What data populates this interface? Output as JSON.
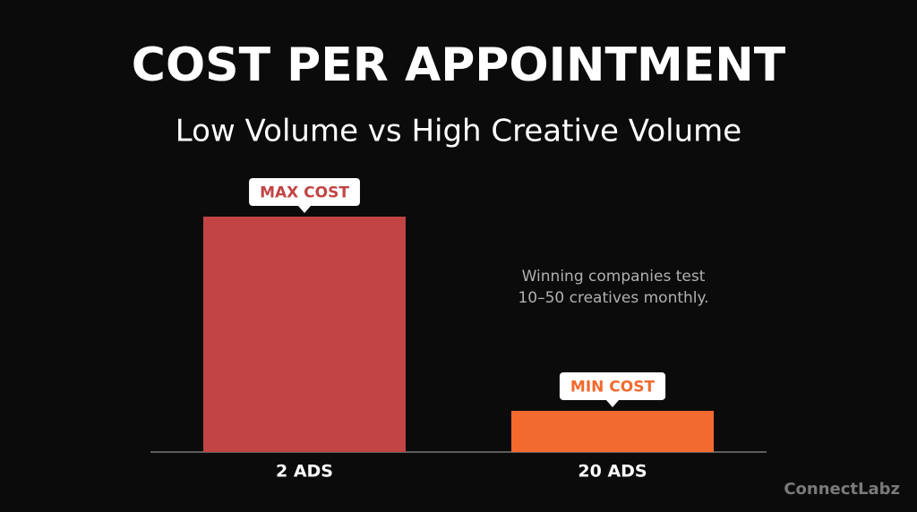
{
  "chart_data": {
    "type": "bar",
    "title": "COST PER APPOINTMENT",
    "subtitle": "Low Volume vs High Creative Volume",
    "categories": [
      "2 ADS",
      "20 ADS"
    ],
    "values": [
      100,
      17.5
    ],
    "colors": [
      "#c24444",
      "#f26a2e"
    ],
    "callouts": [
      "MAX COST",
      "MIN COST"
    ],
    "annotation": [
      "Winning companies test",
      "10–50 creatives monthly."
    ],
    "watermark": "ConnectLabz"
  }
}
